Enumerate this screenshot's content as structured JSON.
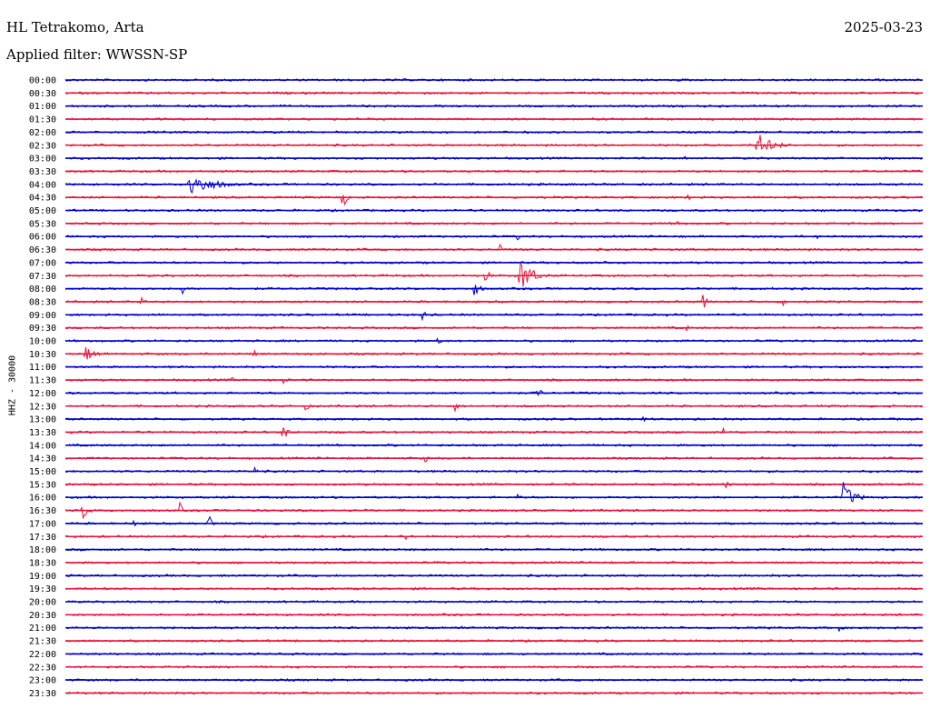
{
  "header": {
    "station": "HL Tetrakomo, Arta",
    "date": "2025-03-23",
    "filter_text": "Applied filter: WWSSN-SP"
  },
  "chart_data": {
    "type": "line",
    "title": "",
    "ylabel": "HHZ - 30000",
    "xlabel": "",
    "x_range_minutes": [
      0,
      30
    ],
    "rows": [
      "00:00",
      "00:30",
      "01:00",
      "01:30",
      "02:00",
      "02:30",
      "03:00",
      "03:30",
      "04:00",
      "04:30",
      "05:00",
      "05:30",
      "06:00",
      "06:30",
      "07:00",
      "07:30",
      "08:00",
      "08:30",
      "09:00",
      "09:30",
      "10:00",
      "10:30",
      "11:00",
      "11:30",
      "12:00",
      "12:30",
      "13:00",
      "13:30",
      "14:00",
      "14:30",
      "15:00",
      "15:30",
      "16:00",
      "16:30",
      "17:00",
      "17:30",
      "18:00",
      "18:30",
      "19:00",
      "19:30",
      "20:00",
      "20:30",
      "21:00",
      "21:30",
      "22:00",
      "22:30",
      "23:00",
      "23:30"
    ],
    "colors": [
      "#0000cc",
      "#e8143c"
    ],
    "events": [
      {
        "row": "02:30",
        "minute": 24.2,
        "amplitude": 15,
        "duration": 1.5
      },
      {
        "row": "03:00",
        "minute": 21.7,
        "amplitude": 5,
        "duration": 0.2
      },
      {
        "row": "04:00",
        "minute": 4.3,
        "amplitude": 15,
        "duration": 2.4
      },
      {
        "row": "04:30",
        "minute": 9.7,
        "amplitude": 14,
        "duration": 0.4
      },
      {
        "row": "04:30",
        "minute": 14.1,
        "amplitude": 4,
        "duration": 0.3
      },
      {
        "row": "04:30",
        "minute": 16.3,
        "amplitude": 4,
        "duration": 0.3
      },
      {
        "row": "04:30",
        "minute": 21.8,
        "amplitude": 4,
        "duration": 0.3
      },
      {
        "row": "05:30",
        "minute": 21.4,
        "amplitude": 5,
        "duration": 0.4
      },
      {
        "row": "06:00",
        "minute": 15.8,
        "amplitude": 5,
        "duration": 0.4
      },
      {
        "row": "06:00",
        "minute": 26.3,
        "amplitude": 4,
        "duration": 0.3
      },
      {
        "row": "06:30",
        "minute": 15.2,
        "amplitude": 6,
        "duration": 0.3
      },
      {
        "row": "07:00",
        "minute": 18.9,
        "amplitude": 4,
        "duration": 0.3
      },
      {
        "row": "07:30",
        "minute": 15.9,
        "amplitude": 22,
        "duration": 1.2
      },
      {
        "row": "07:30",
        "minute": 14.7,
        "amplitude": 8,
        "duration": 0.5
      },
      {
        "row": "08:00",
        "minute": 14.3,
        "amplitude": 10,
        "duration": 0.6
      },
      {
        "row": "08:00",
        "minute": 4.1,
        "amplitude": 6,
        "duration": 0.3
      },
      {
        "row": "08:00",
        "minute": 10.7,
        "amplitude": 5,
        "duration": 0.3
      },
      {
        "row": "08:30",
        "minute": 2.6,
        "amplitude": 10,
        "duration": 0.4
      },
      {
        "row": "08:30",
        "minute": 22.3,
        "amplitude": 9,
        "duration": 0.5
      },
      {
        "row": "08:30",
        "minute": 25.1,
        "amplitude": 6,
        "duration": 0.4
      },
      {
        "row": "09:00",
        "minute": 12.5,
        "amplitude": 9,
        "duration": 0.3
      },
      {
        "row": "09:30",
        "minute": 21.7,
        "amplitude": 5,
        "duration": 0.3
      },
      {
        "row": "10:00",
        "minute": 13.0,
        "amplitude": 6,
        "duration": 0.4
      },
      {
        "row": "10:30",
        "minute": 0.7,
        "amplitude": 9,
        "duration": 1.0
      },
      {
        "row": "10:30",
        "minute": 6.6,
        "amplitude": 5,
        "duration": 0.3
      },
      {
        "row": "11:30",
        "minute": 7.6,
        "amplitude": 7,
        "duration": 0.4
      },
      {
        "row": "11:30",
        "minute": 5.8,
        "amplitude": 5,
        "duration": 0.3
      },
      {
        "row": "12:00",
        "minute": 16.5,
        "amplitude": 10,
        "duration": 0.4
      },
      {
        "row": "12:00",
        "minute": 15.4,
        "amplitude": 7,
        "duration": 0.4
      },
      {
        "row": "12:30",
        "minute": 8.4,
        "amplitude": 6,
        "duration": 0.4
      },
      {
        "row": "12:30",
        "minute": 13.6,
        "amplitude": 8,
        "duration": 0.4
      },
      {
        "row": "13:00",
        "minute": 20.2,
        "amplitude": 7,
        "duration": 0.4
      },
      {
        "row": "13:30",
        "minute": 7.6,
        "amplitude": 10,
        "duration": 0.5
      },
      {
        "row": "13:30",
        "minute": 23.0,
        "amplitude": 10,
        "duration": 0.2
      },
      {
        "row": "14:30",
        "minute": 12.6,
        "amplitude": 6,
        "duration": 0.3
      },
      {
        "row": "15:00",
        "minute": 6.6,
        "amplitude": 7,
        "duration": 0.3
      },
      {
        "row": "15:30",
        "minute": 23.1,
        "amplitude": 6,
        "duration": 0.4
      },
      {
        "row": "16:00",
        "minute": 27.2,
        "amplitude": 18,
        "duration": 1.1
      },
      {
        "row": "16:00",
        "minute": 15.8,
        "amplitude": 6,
        "duration": 0.3
      },
      {
        "row": "16:30",
        "minute": 0.6,
        "amplitude": 11,
        "duration": 0.6
      },
      {
        "row": "16:30",
        "minute": 4.0,
        "amplitude": 9,
        "duration": 0.3
      },
      {
        "row": "17:00",
        "minute": 5.0,
        "amplitude": 11,
        "duration": 0.5
      },
      {
        "row": "17:00",
        "minute": 2.4,
        "amplitude": 5,
        "duration": 0.3
      },
      {
        "row": "17:30",
        "minute": 11.9,
        "amplitude": 5,
        "duration": 0.3
      },
      {
        "row": "21:00",
        "minute": 13.9,
        "amplitude": 6,
        "duration": 0.3
      },
      {
        "row": "21:00",
        "minute": 27.0,
        "amplitude": 6,
        "duration": 0.5
      }
    ]
  }
}
